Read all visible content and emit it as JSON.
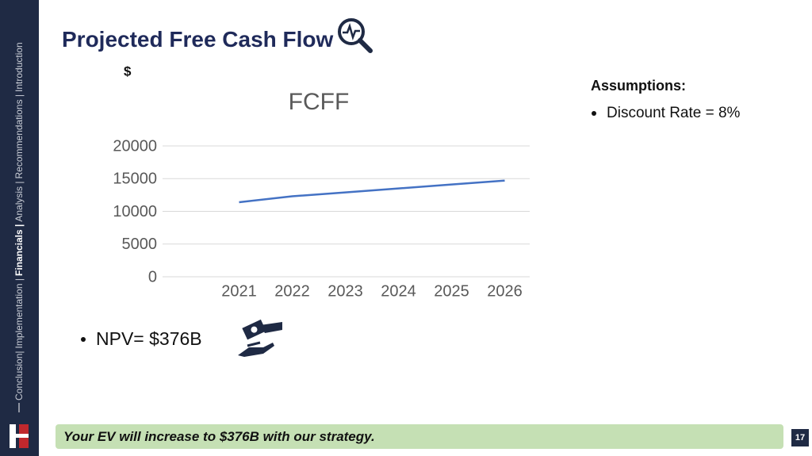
{
  "slide": {
    "title": "Projected Free Cash Flow",
    "nav": [
      "Conclusion|",
      "Implementation |",
      "Financials |",
      "Analysis |",
      "Recommendations |",
      "Introduction"
    ],
    "assumptions_heading": "Assumptions:",
    "assumptions": [
      "Discount Rate = 8%"
    ],
    "npv": "NPV= $376B",
    "banner": "Your EV will increase to $376B with our strategy.",
    "page_number": "17"
  },
  "chart_data": {
    "type": "line",
    "title": "FCFF",
    "y_label": "$",
    "categories": [
      "2021",
      "2022",
      "2023",
      "2024",
      "2025",
      "2026"
    ],
    "series": [
      {
        "name": "FCFF",
        "color": "#4472c4",
        "values": [
          11400,
          12300,
          12900,
          13500,
          14100,
          14700
        ]
      }
    ],
    "ylim": [
      0,
      20000
    ],
    "yticks": [
      0,
      5000,
      10000,
      15000,
      20000
    ],
    "grid": true
  }
}
